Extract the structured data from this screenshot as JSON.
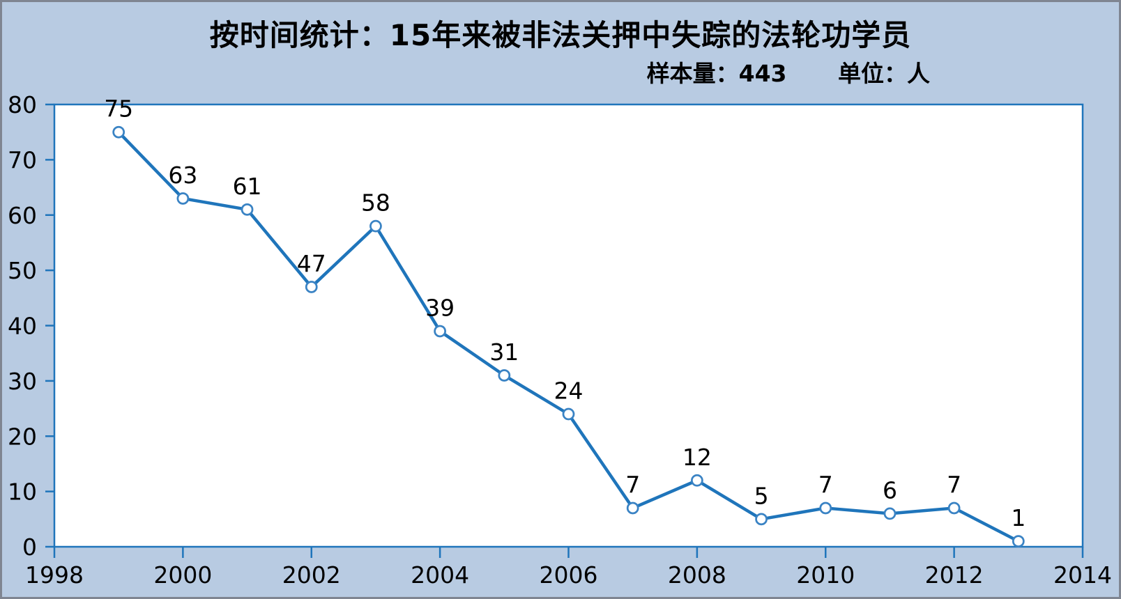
{
  "frame": {
    "background_color": "#b8cbe2",
    "border_color": "#7f8591"
  },
  "chart_data": {
    "type": "line",
    "title": "按时间统计：15年来被非法关押中失踪的法轮功学员",
    "subtitle": {
      "sample_label": "样本量：443",
      "unit_label": "单位：人"
    },
    "x": [
      1999,
      2000,
      2001,
      2002,
      2003,
      2004,
      2005,
      2006,
      2007,
      2008,
      2009,
      2010,
      2011,
      2012,
      2013
    ],
    "values": [
      75,
      63,
      61,
      47,
      58,
      39,
      31,
      24,
      7,
      12,
      5,
      7,
      6,
      7,
      1
    ],
    "xlim": [
      1998,
      2014
    ],
    "ylim": [
      0,
      80
    ],
    "x_ticks": [
      1998,
      2000,
      2002,
      2004,
      2006,
      2008,
      2010,
      2012,
      2014
    ],
    "y_ticks": [
      0,
      10,
      20,
      30,
      40,
      50,
      60,
      70,
      80
    ],
    "grid": false,
    "legend": "none",
    "marker": "open-circle",
    "data_labels": "above-points",
    "colors": {
      "line": "#1f75bb",
      "axis": "#1f75bb",
      "marker_stroke": "#3a83c4",
      "marker_fill": "#ffffff",
      "plot_background": "#ffffff",
      "label_text": "#000000"
    }
  }
}
